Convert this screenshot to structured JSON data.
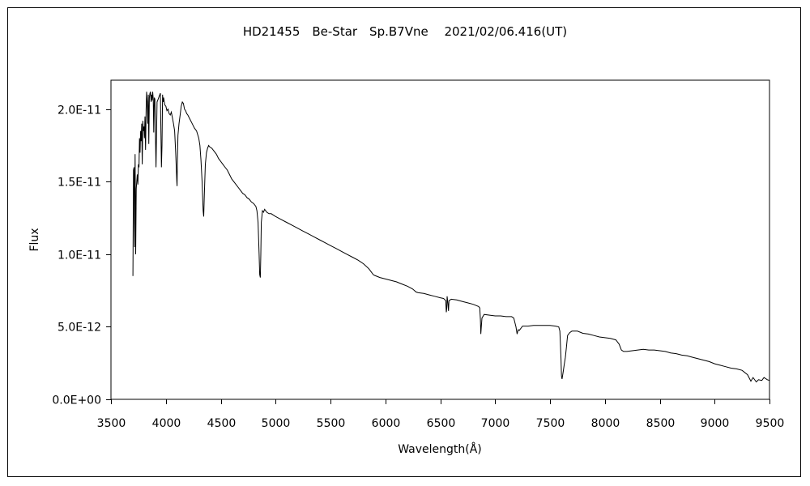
{
  "chart_data": {
    "type": "line",
    "title": "HD21455　Be-Star　Sp.B7Vne　 2021/02/06.416(UT)",
    "xlabel": "Wavelength(Å)",
    "ylabel": "Flux",
    "xlim": [
      3500,
      9500
    ],
    "ylim": [
      0,
      2.2e-11
    ],
    "x_ticks": [
      3500,
      4000,
      4500,
      5000,
      5500,
      6000,
      6500,
      7000,
      7500,
      8000,
      8500,
      9000,
      9500
    ],
    "x_tick_labels": [
      "3500",
      "4000",
      "4500",
      "5000",
      "5500",
      "6000",
      "6500",
      "7000",
      "7500",
      "8000",
      "8500",
      "9000",
      "9500"
    ],
    "y_ticks": [
      0,
      5e-12,
      1e-11,
      1.5e-11,
      2e-11
    ],
    "y_tick_labels": [
      "0.0E+00",
      "5.0E-12",
      "1.0E-11",
      "1.5E-11",
      "2.0E-11"
    ],
    "grid": false,
    "legend": "none",
    "series_color": "#000000",
    "series": [
      {
        "x": [
          3700,
          3705,
          3710,
          3715,
          3720,
          3725,
          3730,
          3735,
          3740,
          3745,
          3750,
          3755,
          3760,
          3765,
          3770,
          3775,
          3780,
          3785,
          3790,
          3795,
          3800,
          3805,
          3810,
          3815,
          3820,
          3825,
          3830,
          3835,
          3840,
          3845,
          3850,
          3855,
          3860,
          3865,
          3870,
          3875,
          3880,
          3885,
          3890,
          3895,
          3900,
          3910,
          3920,
          3930,
          3940,
          3950,
          3960,
          3965,
          3970,
          3975,
          3980,
          3990,
          4000,
          4010,
          4020,
          4030,
          4040,
          4050,
          4060,
          4070,
          4080,
          4090,
          4100,
          4102,
          4105,
          4110,
          4120,
          4130,
          4140,
          4150,
          4160,
          4170,
          4180,
          4190,
          4200,
          4220,
          4240,
          4260,
          4280,
          4300,
          4310,
          4320,
          4330,
          4340,
          4345,
          4350,
          4360,
          4370,
          4380,
          4390,
          4400,
          4420,
          4440,
          4460,
          4480,
          4500,
          4520,
          4540,
          4560,
          4580,
          4600,
          4620,
          4640,
          4660,
          4680,
          4700,
          4720,
          4740,
          4760,
          4780,
          4800,
          4820,
          4830,
          4840,
          4850,
          4855,
          4861,
          4865,
          4870,
          4880,
          4890,
          4900,
          4920,
          4940,
          4960,
          4980,
          5000,
          5050,
          5100,
          5150,
          5200,
          5250,
          5300,
          5350,
          5400,
          5450,
          5500,
          5550,
          5600,
          5650,
          5700,
          5750,
          5800,
          5850,
          5870,
          5890,
          5900,
          5950,
          6000,
          6050,
          6100,
          6150,
          6200,
          6250,
          6280,
          6300,
          6350,
          6400,
          6450,
          6500,
          6530,
          6550,
          6555,
          6560,
          6563,
          6570,
          6575,
          6580,
          6600,
          6650,
          6700,
          6750,
          6800,
          6850,
          6860,
          6866,
          6870,
          6880,
          6900,
          6950,
          7000,
          7050,
          7100,
          7150,
          7170,
          7190,
          7200,
          7210,
          7220,
          7250,
          7300,
          7350,
          7400,
          7450,
          7500,
          7550,
          7580,
          7590,
          7600,
          7605,
          7610,
          7620,
          7630,
          7640,
          7650,
          7660,
          7680,
          7700,
          7750,
          7800,
          7850,
          7900,
          7950,
          8000,
          8050,
          8100,
          8130,
          8150,
          8170,
          8200,
          8250,
          8300,
          8350,
          8400,
          8450,
          8500,
          8550,
          8600,
          8650,
          8700,
          8750,
          8800,
          8850,
          8900,
          8950,
          9000,
          9050,
          9100,
          9150,
          9200,
          9250,
          9300,
          9330,
          9350,
          9380,
          9400,
          9430,
          9450,
          9480,
          9500
        ],
        "y": [
          8.5e-12,
          1.58e-11,
          1.6e-11,
          1.05e-11,
          1.69e-11,
          1e-11,
          1.45e-11,
          1.5e-11,
          1.55e-11,
          1.48e-11,
          1.62e-11,
          1.6e-11,
          1.8e-11,
          1.7e-11,
          1.85e-11,
          1.78e-11,
          1.9e-11,
          1.62e-11,
          1.92e-11,
          1.85e-11,
          1.88e-11,
          1.8e-11,
          1.95e-11,
          1.72e-11,
          2e-11,
          2.12e-11,
          2.05e-11,
          1.9e-11,
          2.1e-11,
          1.76e-11,
          2.08e-11,
          2.11e-11,
          2.12e-11,
          2.05e-11,
          2.1e-11,
          2.06e-11,
          2.12e-11,
          2.07e-11,
          1.84e-11,
          2.08e-11,
          2.07e-11,
          1.6e-11,
          2.05e-11,
          2.07e-11,
          2.09e-11,
          2.11e-11,
          1.6e-11,
          1.75e-11,
          2.1e-11,
          2.05e-11,
          2.08e-11,
          2.03e-11,
          2.02e-11,
          1.99e-11,
          2e-11,
          1.97e-11,
          1.96e-11,
          1.98e-11,
          1.94e-11,
          1.9e-11,
          1.85e-11,
          1.7e-11,
          1.5e-11,
          1.47e-11,
          1.65e-11,
          1.82e-11,
          1.9e-11,
          1.96e-11,
          2.02e-11,
          2.05e-11,
          2.04e-11,
          2e-11,
          1.99e-11,
          1.97e-11,
          1.96e-11,
          1.93e-11,
          1.9e-11,
          1.87e-11,
          1.85e-11,
          1.8e-11,
          1.75e-11,
          1.65e-11,
          1.5e-11,
          1.3e-11,
          1.26e-11,
          1.4e-11,
          1.62e-11,
          1.7e-11,
          1.73e-11,
          1.75e-11,
          1.74e-11,
          1.73e-11,
          1.71e-11,
          1.69e-11,
          1.66e-11,
          1.64e-11,
          1.62e-11,
          1.6e-11,
          1.58e-11,
          1.55e-11,
          1.52e-11,
          1.5e-11,
          1.48e-11,
          1.46e-11,
          1.44e-11,
          1.42e-11,
          1.41e-11,
          1.39e-11,
          1.38e-11,
          1.36e-11,
          1.35e-11,
          1.33e-11,
          1.3e-11,
          1.22e-11,
          1e-11,
          8.6e-12,
          8.4e-12,
          1e-11,
          1.22e-11,
          1.3e-11,
          1.29e-11,
          1.31e-11,
          1.29e-11,
          1.28e-11,
          1.28e-11,
          1.27e-11,
          1.26e-11,
          1.24e-11,
          1.22e-11,
          1.2e-11,
          1.18e-11,
          1.16e-11,
          1.14e-11,
          1.12e-11,
          1.1e-11,
          1.08e-11,
          1.06e-11,
          1.04e-11,
          1.02e-11,
          1e-11,
          9.8e-12,
          9.6e-12,
          9.35e-12,
          9e-12,
          8.8e-12,
          8.6e-12,
          8.55e-12,
          8.4e-12,
          8.3e-12,
          8.2e-12,
          8.1e-12,
          7.95e-12,
          7.8e-12,
          7.6e-12,
          7.4e-12,
          7.35e-12,
          7.3e-12,
          7.2e-12,
          7.1e-12,
          7e-12,
          6.95e-12,
          6.8e-12,
          6e-12,
          6.3e-12,
          7.1e-12,
          6.6e-12,
          6.1e-12,
          6.8e-12,
          6.9e-12,
          6.85e-12,
          6.75e-12,
          6.65e-12,
          6.55e-12,
          6.4e-12,
          6.3e-12,
          5.5e-12,
          4.5e-12,
          5.6e-12,
          5.85e-12,
          5.8e-12,
          5.75e-12,
          5.75e-12,
          5.7e-12,
          5.7e-12,
          5.6e-12,
          5e-12,
          4.5e-12,
          4.8e-12,
          4.75e-12,
          5.05e-12,
          5.05e-12,
          5.1e-12,
          5.1e-12,
          5.1e-12,
          5.1e-12,
          5.05e-12,
          5e-12,
          4.7e-12,
          2.8e-12,
          1.6e-12,
          1.4e-12,
          1.9e-12,
          2.4e-12,
          2.9e-12,
          3.6e-12,
          4.4e-12,
          4.6e-12,
          4.7e-12,
          4.7e-12,
          4.55e-12,
          4.5e-12,
          4.4e-12,
          4.3e-12,
          4.25e-12,
          4.2e-12,
          4.1e-12,
          3.8e-12,
          3.4e-12,
          3.3e-12,
          3.3e-12,
          3.35e-12,
          3.4e-12,
          3.45e-12,
          3.4e-12,
          3.4e-12,
          3.35e-12,
          3.3e-12,
          3.2e-12,
          3.15e-12,
          3.05e-12,
          3e-12,
          2.9e-12,
          2.8e-12,
          2.7e-12,
          2.6e-12,
          2.45e-12,
          2.35e-12,
          2.25e-12,
          2.15e-12,
          2.1e-12,
          2e-12,
          1.7e-12,
          1.25e-12,
          1.5e-12,
          1.2e-12,
          1.35e-12,
          1.3e-12,
          1.5e-12,
          1.35e-12,
          1.3e-12
        ]
      }
    ]
  }
}
